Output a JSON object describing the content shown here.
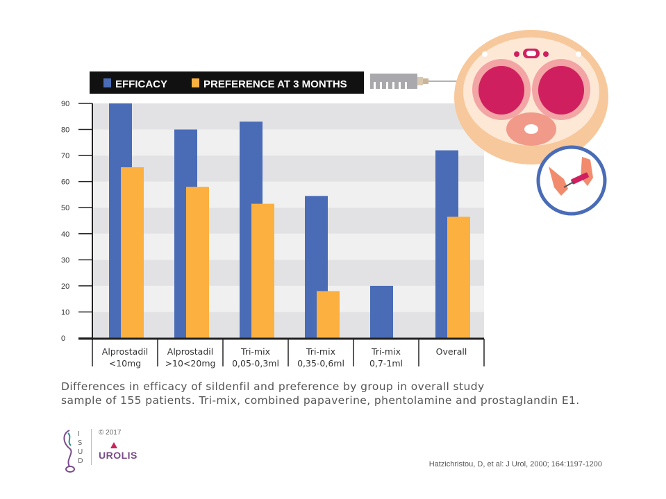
{
  "chart_data": {
    "type": "bar",
    "categories": [
      [
        "Alprostadil",
        "<10mg"
      ],
      [
        "Alprostadil",
        ">10<20mg"
      ],
      [
        "Tri-mix",
        "0,05-0,3ml"
      ],
      [
        "Tri-mix",
        "0,35-0,6ml"
      ],
      [
        "Tri-mix",
        "0,7-1ml"
      ],
      [
        "Overall",
        ""
      ]
    ],
    "series": [
      {
        "name": "EFFICACY",
        "color": "#4a6cb7",
        "values": [
          90,
          80,
          83,
          54.5,
          20,
          72
        ]
      },
      {
        "name": "PREFERENCE AT 3 MONTHS",
        "color": "#fbb040",
        "values": [
          65.5,
          58,
          51.5,
          18,
          null,
          46.5
        ]
      }
    ],
    "ylim": [
      0,
      90
    ],
    "yticks": [
      0,
      10,
      20,
      30,
      40,
      50,
      60,
      70,
      80,
      90
    ],
    "grid": "alternating horizontal bands",
    "legend_placement": "top",
    "title": "",
    "xlabel": "",
    "ylabel": ""
  },
  "caption": {
    "line1": "Differences in efficacy of sildenfil and preference by group in overall study",
    "line2": "sample of 155 patients. Tri-mix, combined papaverine, phentolamine and prostaglandin E1."
  },
  "citation": "Hatzichristou, D, et al: J Urol, 2000; 164:1197-1200",
  "footer": {
    "copyright": "© 2017",
    "brand": "UROLIS",
    "logo_letters": [
      "I",
      "S",
      "U",
      "D"
    ]
  },
  "icons": [
    "syringe-icon",
    "cross-section-illustration",
    "hands-injection-icon",
    "isud-logo-icon"
  ]
}
